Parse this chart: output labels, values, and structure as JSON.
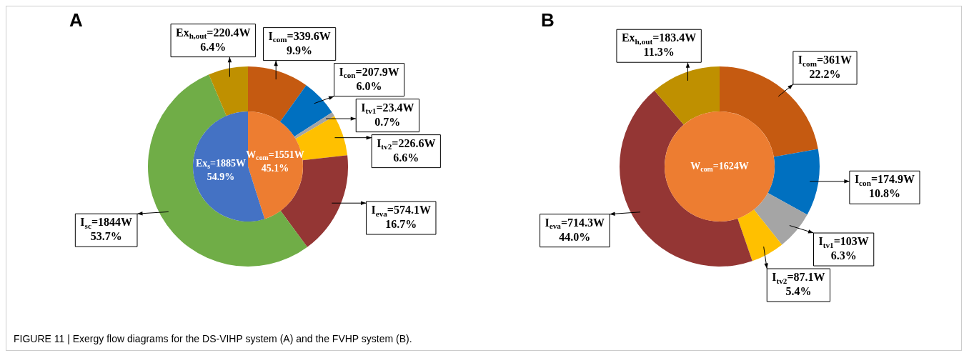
{
  "chart_data": [
    {
      "type": "donut",
      "title": "A",
      "annotations": [
        "FIGURE 11 | Exergy flow diagrams for the DS-VIHP system (A) and the FVHP system (B)."
      ],
      "categories": [
        "I$_{com}$=339.6W",
        "I$_{con}$=207.9W",
        "I$_{tv1}$=23.4W",
        "I$_{tv2}$=226.6W",
        "I$_{eva}$=574.1W",
        "I$_{sc}$=1844W",
        "Ex$_{h,out}$=220.4W"
      ],
      "values": [
        9.9,
        6.0,
        0.7,
        6.6,
        16.7,
        53.7,
        6.4
      ],
      "colors": [
        "#c55a11",
        "#0070c0",
        "#a5a5a5",
        "#ffc000",
        "#943634",
        "#70ad47",
        "#bf9000"
      ],
      "value_labels": [
        "9.9%",
        "6.0%",
        "0.7%",
        "6.6%",
        "16.7%",
        "53.7%",
        "6.4%"
      ]
    },
    {
      "type": "pie",
      "categories": [
        "W$_{com}$=1551W",
        "Ex$_{s}$=1885W"
      ],
      "values": [
        45.1,
        54.9
      ],
      "colors": [
        "#ed7d31",
        "#4472c4"
      ],
      "value_labels": [
        "45.1%",
        "54.9%"
      ]
    },
    {
      "type": "donut",
      "title": "B",
      "categories": [
        "I$_{com}$=361W",
        "I$_{con}$=174.9W",
        "I$_{tv1}$=103W",
        "I$_{tv2}$=87.1W",
        "I$_{eva}$=714.3W",
        "Ex$_{h,out}$=183.4W"
      ],
      "values": [
        22.2,
        10.8,
        6.3,
        5.4,
        44.0,
        11.3
      ],
      "colors": [
        "#c55a11",
        "#0070c0",
        "#a5a5a5",
        "#ffc000",
        "#943634",
        "#bf9000"
      ],
      "value_labels": [
        "22.2%",
        "10.8%",
        "6.3%",
        "5.4%",
        "44.0%",
        "11.3%"
      ]
    },
    {
      "type": "pie",
      "categories": [
        "W$_{com}$=1624W"
      ],
      "values": [
        100
      ],
      "colors": [
        "#ed7d31"
      ]
    }
  ]
}
